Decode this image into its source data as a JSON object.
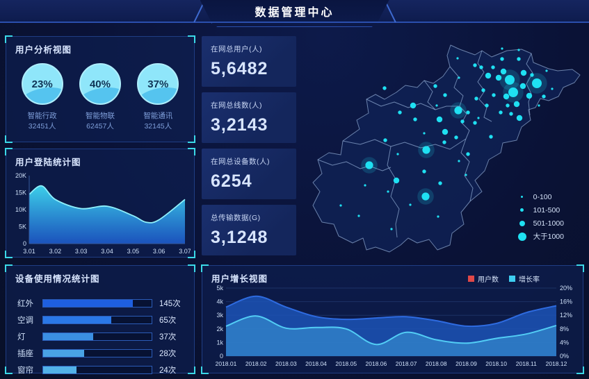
{
  "header": {
    "title": "数据管理中心"
  },
  "panels": {
    "user_analysis": {
      "title": "用户分析视图",
      "items": [
        {
          "percent": "23%",
          "label": "智能行政",
          "count": "32451人"
        },
        {
          "percent": "40%",
          "label": "智能物联",
          "count": "62457人"
        },
        {
          "percent": "37%",
          "label": "智能通讯",
          "count": "32145人"
        }
      ]
    },
    "login_stats": {
      "title": "用户登陆统计图"
    },
    "device_usage": {
      "title": "设备使用情况统计图",
      "rows": [
        {
          "label": "红外",
          "value": "145次",
          "pct": 83,
          "color": "#1e5fe0"
        },
        {
          "label": "空调",
          "value": "65次",
          "pct": 63,
          "color": "#2a78e8"
        },
        {
          "label": "灯",
          "value": "37次",
          "pct": 46,
          "color": "#3b8fe2"
        },
        {
          "label": "插座",
          "value": "28次",
          "pct": 38,
          "color": "#49a3e4"
        },
        {
          "label": "窗帘",
          "value": "24次",
          "pct": 31,
          "color": "#52b2e8"
        }
      ]
    },
    "user_growth": {
      "title": "用户增长视图"
    }
  },
  "stats": [
    {
      "label": "在网总用户(人)",
      "value": "5,6482"
    },
    {
      "label": "在网总线数(人)",
      "value": "3,2143"
    },
    {
      "label": "在网总设备数(人)",
      "value": "6254"
    },
    {
      "label": "总传输数据(G)",
      "value": "3,1248"
    }
  ],
  "map": {
    "legend": [
      {
        "label": "0-100",
        "d": 3
      },
      {
        "label": "101-500",
        "d": 5
      },
      {
        "label": "501-1000",
        "d": 8
      },
      {
        "label": "大于1000",
        "d": 12
      }
    ],
    "sizes": {
      "t": 1.6,
      "s": 2.7,
      "m": 4.2,
      "l": 5.6,
      "xl": 7
    },
    "points": [
      [
        303,
        73,
        "xl"
      ],
      [
        342,
        78,
        "xl"
      ],
      [
        308,
        91,
        "xl"
      ],
      [
        229,
        117,
        "l"
      ],
      [
        183,
        174,
        "l"
      ],
      [
        101,
        196,
        "l"
      ],
      [
        182,
        241,
        "l"
      ],
      [
        294,
        61,
        "m"
      ],
      [
        272,
        67,
        "m"
      ],
      [
        323,
        63,
        "m"
      ],
      [
        287,
        70,
        "m"
      ],
      [
        298,
        97,
        "m"
      ],
      [
        313,
        108,
        "m"
      ],
      [
        331,
        96,
        "m"
      ],
      [
        322,
        82,
        "m"
      ],
      [
        164,
        110,
        "m"
      ],
      [
        202,
        130,
        "m"
      ],
      [
        140,
        218,
        "m"
      ],
      [
        317,
        128,
        "m"
      ],
      [
        210,
        148,
        "m"
      ],
      [
        253,
        52,
        "s"
      ],
      [
        292,
        43,
        "s"
      ],
      [
        316,
        43,
        "s"
      ],
      [
        262,
        55,
        "s"
      ],
      [
        279,
        55,
        "s"
      ],
      [
        335,
        66,
        "s"
      ],
      [
        352,
        97,
        "s"
      ],
      [
        300,
        110,
        "s"
      ],
      [
        280,
        95,
        "s"
      ],
      [
        265,
        88,
        "s"
      ],
      [
        255,
        100,
        "s"
      ],
      [
        270,
        110,
        "s"
      ],
      [
        243,
        120,
        "s"
      ],
      [
        290,
        120,
        "s"
      ],
      [
        305,
        122,
        "s"
      ],
      [
        253,
        135,
        "s"
      ],
      [
        235,
        133,
        "s"
      ],
      [
        210,
        95,
        "s"
      ],
      [
        196,
        82,
        "s"
      ],
      [
        123,
        85,
        "s"
      ],
      [
        145,
        120,
        "s"
      ],
      [
        167,
        130,
        "s"
      ],
      [
        209,
        163,
        "s"
      ],
      [
        226,
        156,
        "s"
      ],
      [
        276,
        155,
        "s"
      ],
      [
        243,
        180,
        "s"
      ],
      [
        180,
        205,
        "s"
      ],
      [
        203,
        222,
        "s"
      ],
      [
        124,
        160,
        "s"
      ],
      [
        228,
        42,
        "t"
      ],
      [
        292,
        28,
        "t"
      ],
      [
        316,
        30,
        "t"
      ],
      [
        356,
        60,
        "t"
      ],
      [
        364,
        86,
        "t"
      ],
      [
        345,
        110,
        "t"
      ],
      [
        230,
        70,
        "t"
      ],
      [
        198,
        110,
        "t"
      ],
      [
        142,
        180,
        "t"
      ],
      [
        128,
        234,
        "t"
      ],
      [
        86,
        269,
        "t"
      ],
      [
        60,
        254,
        "t"
      ],
      [
        160,
        253,
        "t"
      ],
      [
        200,
        270,
        "t"
      ],
      [
        133,
        288,
        "t"
      ],
      [
        230,
        190,
        "t"
      ],
      [
        240,
        210,
        "t"
      ],
      [
        258,
        128,
        "t"
      ],
      [
        95,
        225,
        "t"
      ],
      [
        180,
        150,
        "t"
      ]
    ]
  },
  "chart_data": [
    {
      "id": "login",
      "type": "area",
      "title": "用户登陆统计图",
      "x": [
        "3.01",
        "3.02",
        "3.03",
        "3.04",
        "3.05",
        "3.06",
        "3.07"
      ],
      "values_k": [
        14.5,
        13,
        10.3,
        11,
        8.2,
        7,
        13
      ],
      "curve": [
        [
          0,
          14.5
        ],
        [
          0.08,
          17
        ],
        [
          0.167,
          13
        ],
        [
          0.333,
          10.3
        ],
        [
          0.5,
          11
        ],
        [
          0.667,
          8.2
        ],
        [
          0.75,
          6.3
        ],
        [
          0.833,
          7
        ],
        [
          1,
          13
        ]
      ],
      "ylim": [
        0,
        20
      ],
      "yticks": [
        "0",
        "5K",
        "10K",
        "15K",
        "20K"
      ],
      "grid": false,
      "legend_position": "none"
    },
    {
      "id": "growth",
      "type": "area",
      "title": "用户增长视图",
      "categories": [
        "2018.01",
        "2018.02",
        "2018.03",
        "2018.04",
        "2018.05",
        "2018.06",
        "2018.07",
        "2018.08",
        "2018.09",
        "2018.10",
        "2018.11",
        "2018.12"
      ],
      "series": [
        {
          "name": "用户数",
          "axis": "left",
          "values_k": [
            3.6,
            4.4,
            3.6,
            2.9,
            2.7,
            2.8,
            2.9,
            2.6,
            2.2,
            2.4,
            3.2,
            3.7
          ],
          "color": "#2e6be0",
          "fill": "#1c53b6"
        },
        {
          "name": "增长率",
          "axis": "right",
          "values_pct": [
            8.8,
            11.8,
            8.2,
            8.4,
            8.0,
            3.4,
            7.0,
            4.8,
            3.8,
            5.2,
            6.5,
            9.0
          ],
          "color": "#52cdf5",
          "fill": "#3fa4e0"
        }
      ],
      "left_ylim": [
        0,
        5
      ],
      "right_ylim": [
        0,
        20
      ],
      "left_ticks": [
        "0",
        "1k",
        "2k",
        "3k",
        "4k",
        "5k"
      ],
      "right_ticks": [
        "0%",
        "4%",
        "8%",
        "12%",
        "16%",
        "20%"
      ],
      "legend": [
        {
          "label": "用户数",
          "color": "#e04848"
        },
        {
          "label": "增长率",
          "color": "#3ecdf0"
        }
      ],
      "grid": true,
      "legend_position": "top-right"
    },
    {
      "id": "device",
      "type": "bar",
      "title": "设备使用情况统计图",
      "categories": [
        "红外",
        "空调",
        "灯",
        "插座",
        "窗帘"
      ],
      "values": [
        145,
        65,
        37,
        28,
        24
      ],
      "unit": "次"
    },
    {
      "id": "user-analysis",
      "type": "pie",
      "items": [
        {
          "label": "智能行政",
          "percent": 23,
          "count": 32451
        },
        {
          "label": "智能物联",
          "percent": 40,
          "count": 62457
        },
        {
          "label": "智能通讯",
          "percent": 37,
          "count": 32145
        }
      ]
    }
  ],
  "colors": {
    "accent_cyan": "#1fe0f2",
    "axis_text": "#cfe0f8",
    "axis_line": "#35599d",
    "area_top": "#3fd9f2",
    "area_bottom": "#1d5acc",
    "area_stroke": "#8ff0fb",
    "map_border": "#93aed6",
    "map_fill": "#0f2153"
  }
}
